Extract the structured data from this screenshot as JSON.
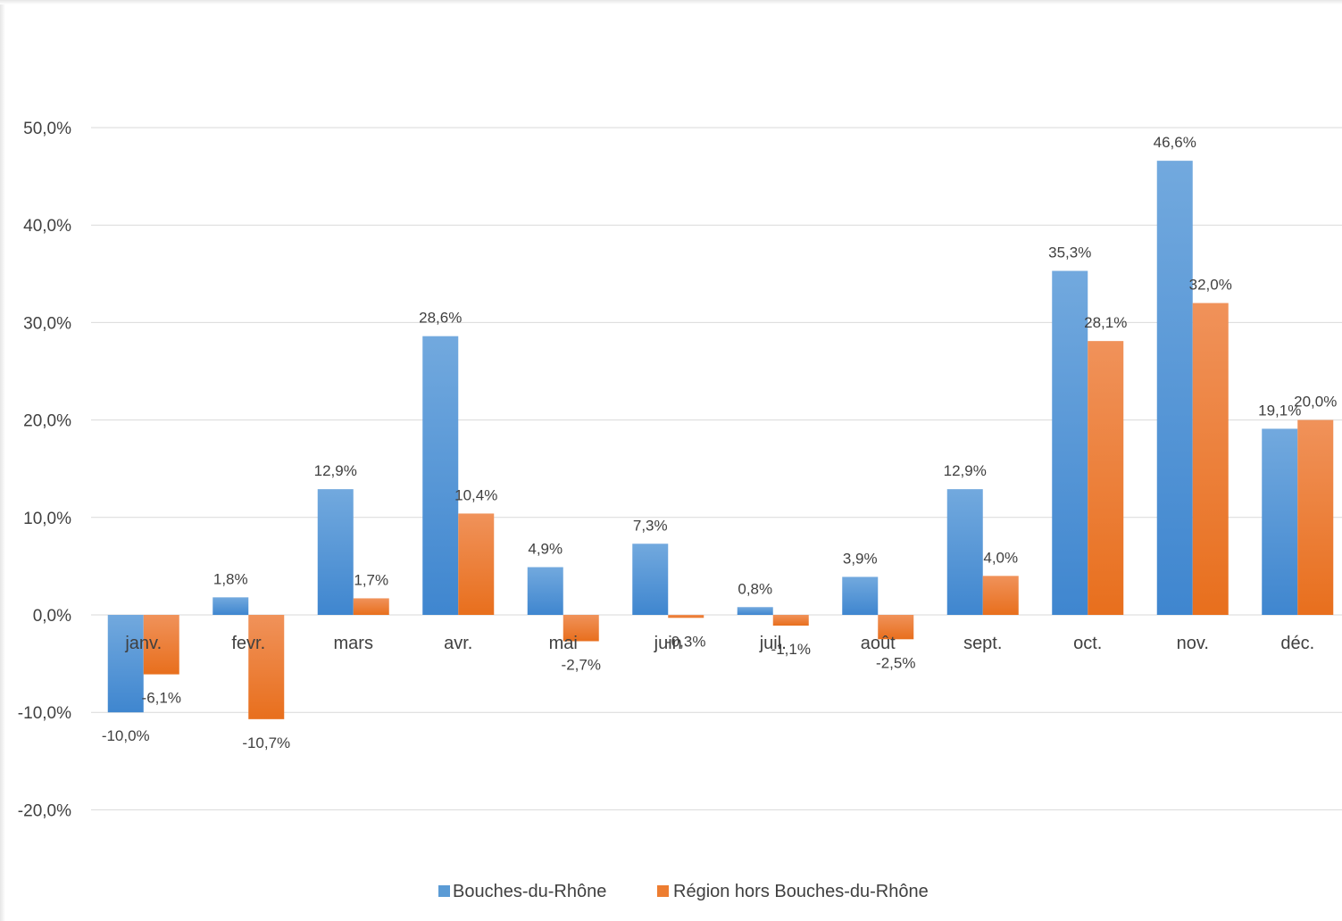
{
  "chart_data": {
    "type": "bar",
    "categories": [
      "janv.",
      "fevr.",
      "mars",
      "avr.",
      "mai",
      "juin",
      "juil.",
      "août",
      "sept.",
      "oct.",
      "nov.",
      "déc."
    ],
    "series": [
      {
        "name": "Bouches-du-Rhône",
        "color": "#5b9bd5",
        "values": [
          -10.0,
          1.8,
          12.9,
          28.6,
          4.9,
          7.3,
          0.8,
          3.9,
          12.9,
          35.3,
          46.6,
          19.1
        ],
        "labels": [
          "-10,0%",
          "1,8%",
          "12,9%",
          "28,6%",
          "4,9%",
          "7,3%",
          "0,8%",
          "3,9%",
          "12,9%",
          "35,3%",
          "46,6%",
          "19,1%"
        ]
      },
      {
        "name": "Région hors Bouches-du-Rhône",
        "color": "#ed7d31",
        "values": [
          -6.1,
          -10.7,
          1.7,
          10.4,
          -2.7,
          -0.3,
          -1.1,
          -2.5,
          4.0,
          28.1,
          32.0,
          20.0
        ],
        "labels": [
          "-6,1%",
          "-10,7%",
          "1,7%",
          "10,4%",
          "-2,7%",
          "-0,3%",
          "-1,1%",
          "-2,5%",
          "4,0%",
          "28,1%",
          "32,0%",
          "20,0%"
        ]
      }
    ],
    "ylim": [
      -20,
      50
    ],
    "yticks": [
      50,
      40,
      30,
      20,
      10,
      0,
      -10,
      -20
    ],
    "ytick_labels": [
      "50,0%",
      "40,0%",
      "30,0%",
      "20,0%",
      "10,0%",
      "0,0%",
      "-10,0%",
      "-20,0%"
    ],
    "grid": true,
    "legend_position": "bottom"
  }
}
